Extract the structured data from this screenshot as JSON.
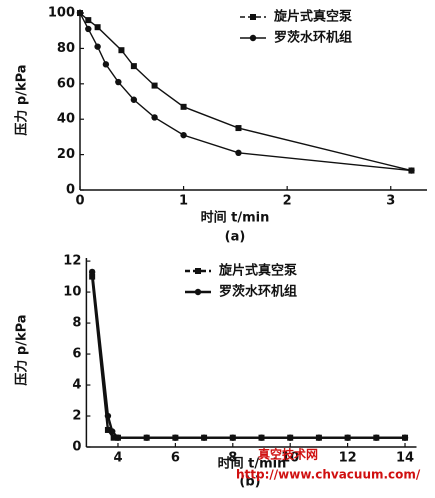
{
  "chart_data": [
    {
      "type": "line",
      "x_label": "时间 t/min",
      "y_label": "压力 p/kPa",
      "caption": "(a)",
      "xlim": [
        0,
        3.35
      ],
      "ylim": [
        0,
        102
      ],
      "xticks": [
        0,
        1,
        2,
        3
      ],
      "yticks": [
        0,
        20,
        40,
        60,
        80,
        100
      ],
      "legend": "upper right",
      "series": [
        {
          "name": "旋片式真空泵",
          "marker": "square",
          "color": "#111111",
          "x": [
            0,
            0.08,
            0.17,
            0.4,
            0.52,
            0.72,
            1.0,
            1.53,
            3.2
          ],
          "values": [
            100,
            96,
            92,
            79,
            70,
            59,
            47,
            35,
            11
          ]
        },
        {
          "name": "罗茨水环机组",
          "marker": "circle",
          "color": "#111111",
          "x": [
            0,
            0.08,
            0.17,
            0.25,
            0.37,
            0.52,
            0.72,
            1.0,
            1.53,
            3.2
          ],
          "values": [
            100,
            91,
            81,
            71,
            61,
            51,
            41,
            31,
            21,
            11
          ]
        }
      ]
    },
    {
      "type": "line",
      "x_label": "时间 t/min",
      "y_label": "压力 p/kPa",
      "caption": "(b)",
      "xlim": [
        2.9,
        14.4
      ],
      "ylim": [
        0,
        12.2
      ],
      "xticks": [
        4,
        6,
        8,
        10,
        12,
        14
      ],
      "yticks": [
        0,
        2,
        4,
        6,
        8,
        10,
        12
      ],
      "legend": "upper right",
      "series": [
        {
          "name": "旋片式真空泵",
          "marker": "square",
          "color": "#111111",
          "x": [
            3.1,
            3.65,
            3.85,
            4,
            5,
            6,
            7,
            8,
            9,
            10,
            11,
            12,
            13,
            14
          ],
          "values": [
            11.0,
            1.1,
            0.6,
            0.6,
            0.6,
            0.6,
            0.6,
            0.6,
            0.6,
            0.6,
            0.6,
            0.6,
            0.6,
            0.6
          ]
        },
        {
          "name": "罗茨水环机组",
          "marker": "circle",
          "color": "#111111",
          "x": [
            3.1,
            3.65,
            3.8,
            4,
            5,
            6,
            7,
            8,
            9,
            10,
            11,
            12,
            13,
            14
          ],
          "values": [
            11.3,
            2.0,
            1.0,
            0.6,
            0.6,
            0.6,
            0.6,
            0.6,
            0.6,
            0.6,
            0.6,
            0.6,
            0.6,
            0.6
          ]
        }
      ]
    }
  ],
  "watermark": {
    "title": "真空技术网",
    "url": "http://www.chvacuum.com/"
  }
}
